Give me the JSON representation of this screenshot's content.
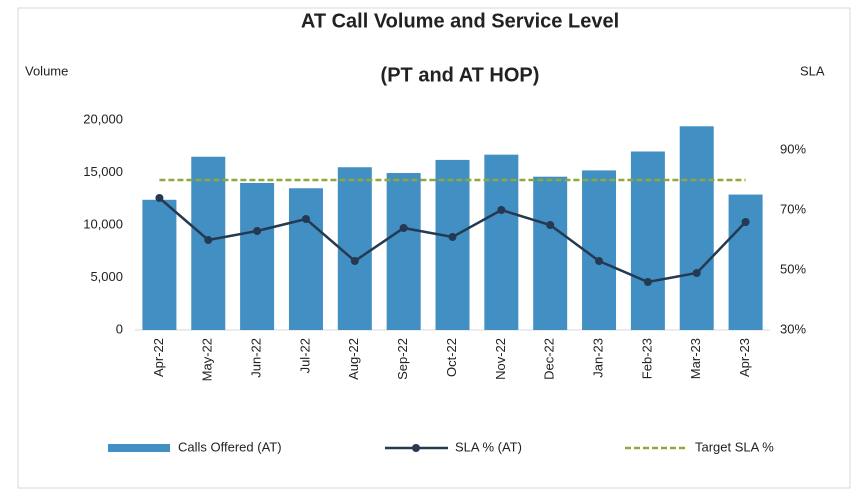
{
  "chart_data": {
    "type": "combo",
    "title": "AT Call Volume and Service Level",
    "subtitle": "(PT and AT HOP)",
    "ylabel": "Volume",
    "y2label": "SLA",
    "categories": [
      "Apr-22",
      "May-22",
      "Jun-22",
      "Jul-22",
      "Aug-22",
      "Sep-22",
      "Oct-22",
      "Nov-22",
      "Dec-22",
      "Jan-23",
      "Feb-23",
      "Mar-23",
      "Apr-23"
    ],
    "series": [
      {
        "name": "Calls Offered (AT)",
        "type": "bar",
        "color": "#418fc3",
        "values": [
          12400,
          16500,
          14000,
          13500,
          15500,
          14950,
          16200,
          16700,
          14600,
          15200,
          17000,
          19400,
          12900
        ]
      },
      {
        "name": "SLA % (AT)",
        "type": "line",
        "axis": "y2",
        "color": "#253a52",
        "values": [
          74,
          60,
          63,
          67,
          53,
          64,
          61,
          70,
          65,
          53,
          46,
          49,
          66
        ]
      },
      {
        "name": "Target SLA %",
        "type": "line",
        "axis": "y2",
        "dashed": true,
        "color": "#8ea83c",
        "values": [
          80,
          80,
          80,
          80,
          80,
          80,
          80,
          80,
          80,
          80,
          80,
          80,
          80
        ]
      }
    ],
    "ylim": [
      0,
      20000
    ],
    "yticks": [
      0,
      {
        "value": 5000,
        "label": "5,000"
      },
      {
        "value": 10000,
        "label": "10,000"
      },
      {
        "value": 15000,
        "label": "15,000"
      },
      {
        "value": 20000,
        "label": "20,000"
      }
    ],
    "y2lim": [
      30,
      100
    ],
    "y2ticks": [
      {
        "value": 30,
        "label": "30%"
      },
      {
        "value": 50,
        "label": "50%"
      },
      {
        "value": 70,
        "label": "70%"
      },
      {
        "value": 90,
        "label": "90%"
      }
    ],
    "legend": "bottom"
  }
}
